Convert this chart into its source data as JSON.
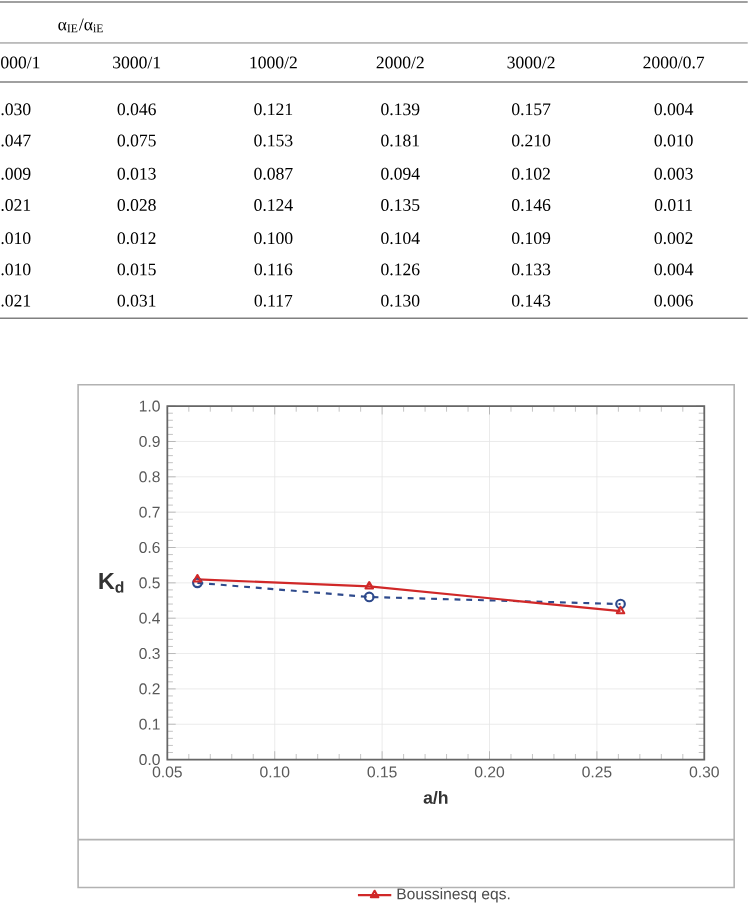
{
  "chart_data": {
    "type": "line",
    "xlabel": "a/h",
    "ylabel": "K$_{d}$",
    "x": [
      0.064,
      0.144,
      0.261
    ],
    "series": [
      {
        "color": "#2e4a8c",
        "values": [
          0.5,
          0.46,
          0.44
        ],
        "line_style": "dashed",
        "marker": "circle"
      },
      {
        "name": "Boussinesq eqs.",
        "color": "#d02828",
        "values": [
          0.51,
          0.49,
          0.42
        ],
        "line_style": "solid",
        "marker": "triangle"
      }
    ],
    "xlim": [
      0.05,
      0.3
    ],
    "xticks": [
      {
        "value": 0.05,
        "label": "0.05"
      },
      {
        "value": 0.1,
        "label": "0.10"
      },
      {
        "value": 0.15,
        "label": "0.15"
      },
      {
        "value": 0.2,
        "label": "0.20"
      },
      {
        "value": 0.25,
        "label": "0.25"
      },
      {
        "value": 0.3,
        "label": "0.30"
      }
    ],
    "ylim": [
      0,
      1
    ],
    "yticks": [
      {
        "value": 0,
        "label": "0.0"
      },
      {
        "value": 0.1,
        "label": "0.1"
      },
      {
        "value": 0.2,
        "label": "0.2"
      },
      {
        "value": 0.3,
        "label": "0.3"
      },
      {
        "value": 0.4,
        "label": "0.4"
      },
      {
        "value": 0.5,
        "label": "0.5"
      },
      {
        "value": 0.6,
        "label": "0.6"
      },
      {
        "value": 0.7,
        "label": "0.7"
      },
      {
        "value": 0.8,
        "label": "0.8"
      },
      {
        "value": 0.9,
        "label": "0.9"
      },
      {
        "value": 1.0,
        "label": "1.0"
      }
    ],
    "grid": true,
    "legend": "bottom",
    "annotations": [
      "α$_{IE}$/α$_{iE}$",
      "000/1",
      "3000/1",
      "1000/2",
      "2000/2",
      "3000/2",
      "2000/0.7",
      ".030",
      "0.046",
      "0.121",
      "0.139",
      "0.157",
      "0.004",
      ".047",
      "0.075",
      "0.153",
      "0.181",
      "0.210",
      "0.010",
      ".009",
      "0.013",
      "0.087",
      "0.094",
      "0.102",
      "0.003",
      ".021",
      "0.028",
      "0.124",
      "0.135",
      "0.146",
      "0.011",
      ".010",
      "0.012",
      "0.100",
      "0.104",
      "0.109",
      "0.002",
      ".010",
      "0.015",
      "0.116",
      "0.126",
      "0.133",
      "0.004",
      ".021",
      "0.031",
      "0.117",
      "0.130",
      "0.143",
      "0.006"
    ]
  }
}
